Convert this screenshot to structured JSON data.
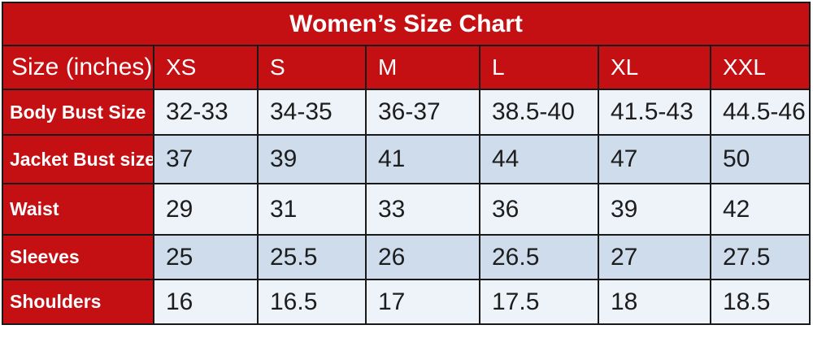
{
  "title": "Women’s Size Chart",
  "colors": {
    "header_bg": "#c40f13",
    "header_text": "#ffffff",
    "row_light": "#eef2f9",
    "row_blue": "#cfdcec",
    "border": "#191919",
    "cell_text": "#1d1d1d"
  },
  "header": {
    "label": "Size (inches)",
    "sizes": [
      "XS",
      "S",
      "M",
      "L",
      "XL",
      "XXL"
    ]
  },
  "rows": [
    {
      "label": "Body Bust Size",
      "values": [
        "32-33",
        "34-35",
        "36-37",
        "38.5-40",
        "41.5-43",
        "44.5-46"
      ]
    },
    {
      "label": "Jacket Bust size",
      "values": [
        "37",
        "39",
        "41",
        "44",
        "47",
        "50"
      ]
    },
    {
      "label": "Waist",
      "values": [
        "29",
        "31",
        "33",
        "36",
        "39",
        "42"
      ]
    },
    {
      "label": "Sleeves",
      "values": [
        "25",
        "25.5",
        "26",
        "26.5",
        "27",
        "27.5"
      ]
    },
    {
      "label": "Shoulders",
      "values": [
        "16",
        "16.5",
        "17",
        "17.5",
        "18",
        "18.5"
      ]
    }
  ],
  "chart_data": {
    "type": "table",
    "title": "Women’s Size Chart",
    "units": "inches",
    "columns": [
      "Size (inches)",
      "XS",
      "S",
      "M",
      "L",
      "XL",
      "XXL"
    ],
    "rows": [
      [
        "Body Bust Size",
        "32-33",
        "34-35",
        "36-37",
        "38.5-40",
        "41.5-43",
        "44.5-46"
      ],
      [
        "Jacket Bust size",
        "37",
        "39",
        "41",
        "44",
        "47",
        "50"
      ],
      [
        "Waist",
        "29",
        "31",
        "33",
        "36",
        "39",
        "42"
      ],
      [
        "Sleeves",
        "25",
        "25.5",
        "26",
        "26.5",
        "27",
        "27.5"
      ],
      [
        "Shoulders",
        "16",
        "16.5",
        "17",
        "17.5",
        "18",
        "18.5"
      ]
    ]
  }
}
